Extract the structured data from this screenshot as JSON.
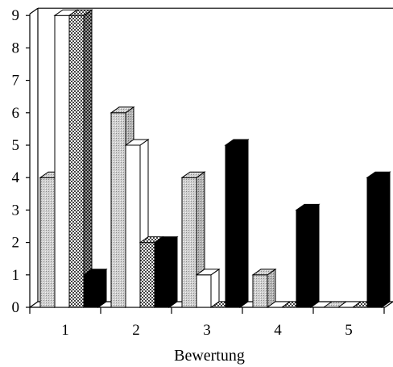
{
  "chart_data": {
    "type": "bar",
    "style": "3d-clustered",
    "title": "",
    "xlabel": "Bewertung",
    "ylabel": "",
    "categories": [
      "1",
      "2",
      "3",
      "4",
      "5"
    ],
    "ylim": [
      0,
      9
    ],
    "yticks": [
      "0",
      "1",
      "2",
      "3",
      "4",
      "5",
      "6",
      "7",
      "8",
      "9"
    ],
    "series": [
      {
        "fill": "light-gray-stipple",
        "color": "#c8c8c8",
        "values": [
          4,
          6,
          4,
          1,
          0
        ]
      },
      {
        "fill": "white",
        "color": "#ffffff",
        "values": [
          9,
          5,
          1,
          0,
          0
        ]
      },
      {
        "fill": "checkered",
        "color": "#9a9a9a",
        "values": [
          9,
          2,
          0,
          0,
          0
        ]
      },
      {
        "fill": "black",
        "color": "#000000",
        "values": [
          1,
          2,
          5,
          3,
          4
        ]
      }
    ],
    "grid": false,
    "legend": "none"
  }
}
